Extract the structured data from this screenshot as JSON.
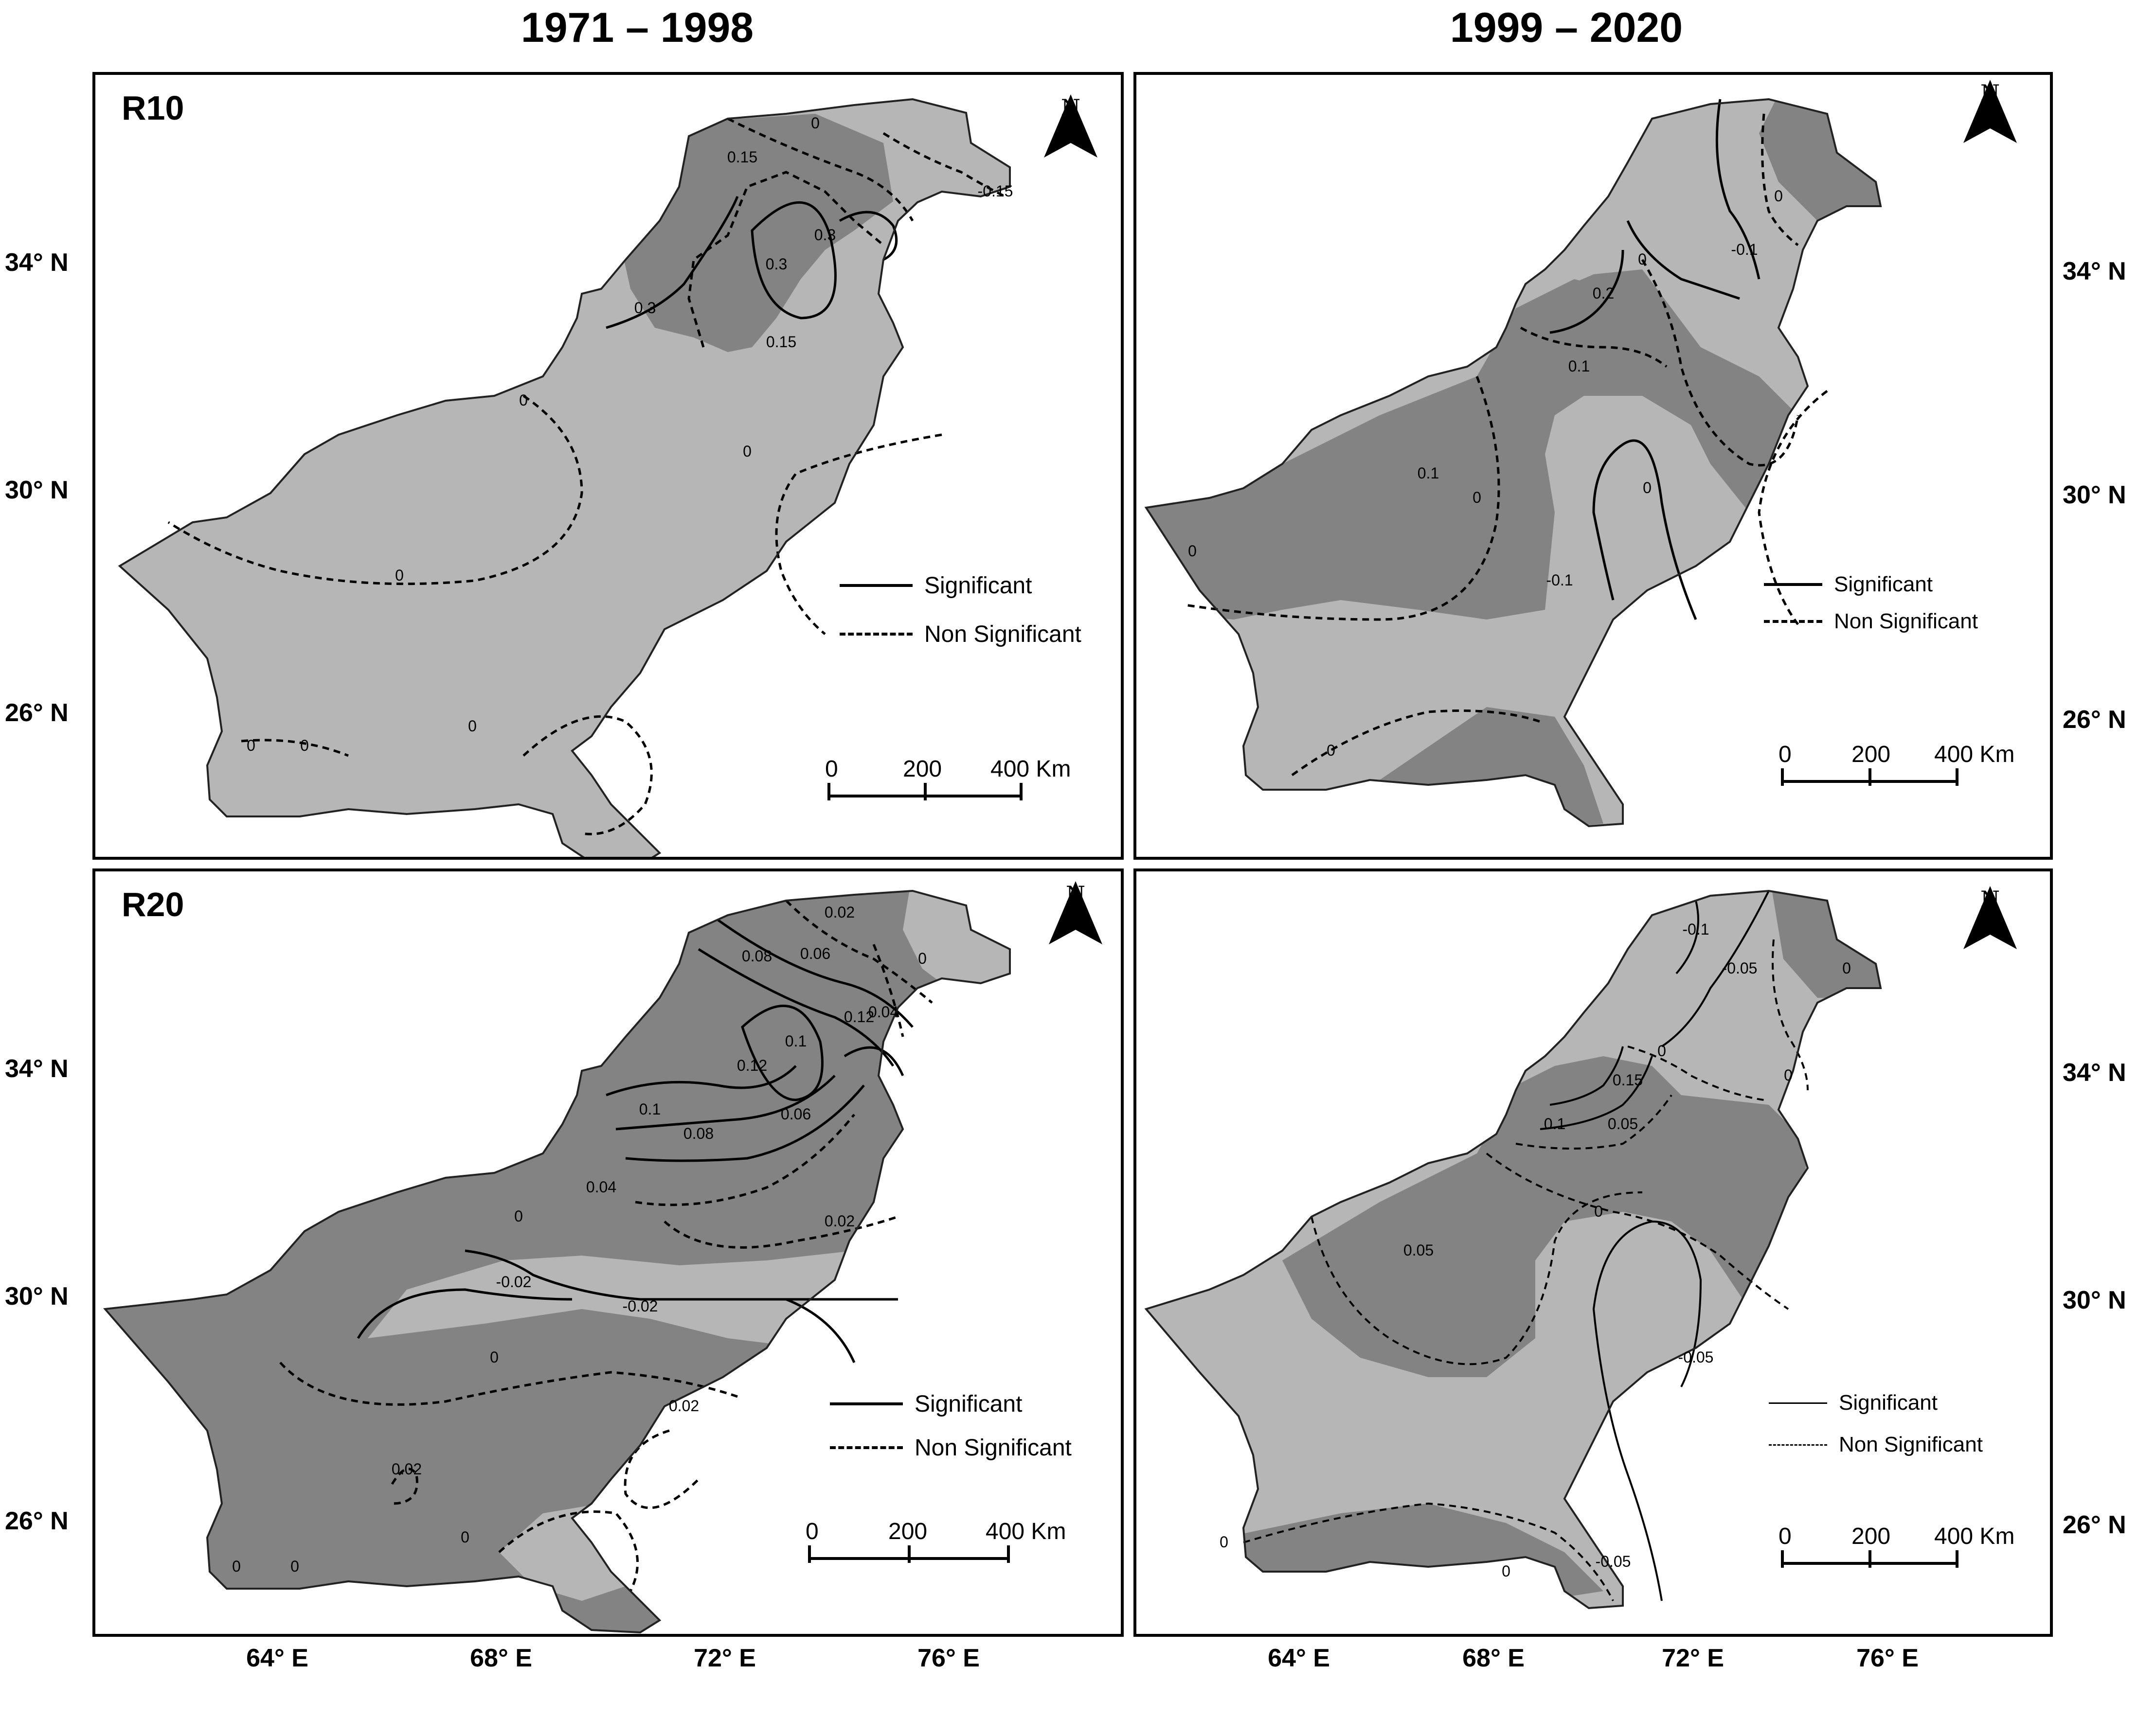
{
  "columns": [
    "1971 – 1998",
    "1999 – 2020"
  ],
  "panels": [
    {
      "id": "r10-early",
      "label": "R10",
      "contours": [
        "0",
        "0.15",
        "-0.15",
        "0.3",
        "0.3",
        "0.3",
        "0.15",
        "0",
        "0",
        "0",
        "0",
        "0",
        "0"
      ]
    },
    {
      "id": "r10-late",
      "label": "",
      "contours": [
        "0",
        "-0.1",
        "0",
        "0.2",
        "0.1",
        "0.1",
        "0",
        "0",
        "-0.1",
        "0",
        "0"
      ]
    },
    {
      "id": "r20-early",
      "label": "R20",
      "contours": [
        "0.02",
        "0",
        "0.08",
        "0.06",
        "0.04",
        "0.12",
        "0.1",
        "0.12",
        "0.1",
        "0.08",
        "0.06",
        "0.04",
        "0.02",
        "0",
        "-0.02",
        "-0.02",
        "0",
        "0.02",
        "0.02",
        "0",
        "0",
        "0"
      ]
    },
    {
      "id": "r20-late",
      "label": "",
      "contours": [
        "-0.1",
        "-0.05",
        "0",
        "0",
        "0",
        "0.15",
        "0.1",
        "0.05",
        "0",
        "0.05",
        "-0.05",
        "-0.05",
        "0",
        "0"
      ]
    }
  ],
  "legend": {
    "significant": "Significant",
    "non_significant": "Non Significant"
  },
  "north": "N",
  "scale": {
    "zero": "0",
    "mid": "200",
    "end": "400 Km"
  },
  "lat_labels": [
    "34° N",
    "30° N",
    "26° N"
  ],
  "lon_labels": [
    "64° E",
    "68° E",
    "72° E",
    "76° E"
  ],
  "colors": {
    "light": "#b6b6b6",
    "dark": "#838383",
    "outline": "#222222"
  }
}
